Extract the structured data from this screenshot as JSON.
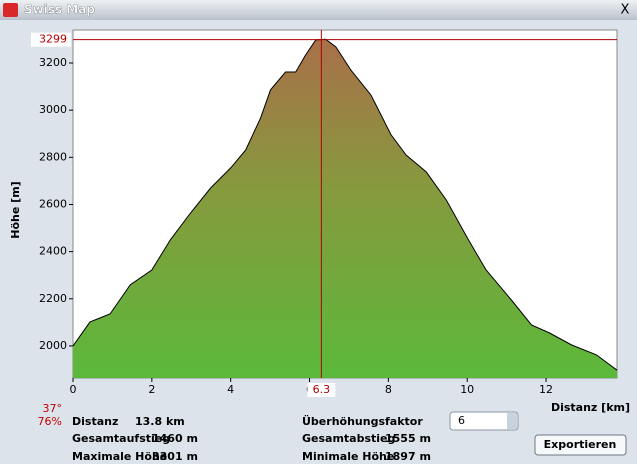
{
  "window": {
    "title": "Swiss Map",
    "close": "X"
  },
  "chart_data": {
    "type": "line",
    "ylabel": "Höhe [m]",
    "xlabel": "Distanz [km]",
    "x": [
      0,
      0.43,
      0.69,
      0.94,
      1.45,
      2.0,
      2.47,
      2.98,
      3.49,
      4.0,
      4.38,
      4.76,
      5.01,
      5.39,
      5.65,
      5.9,
      6.16,
      6.41,
      6.67,
      7.05,
      7.56,
      8.07,
      8.45,
      8.96,
      9.47,
      10.03,
      10.48,
      11.12,
      11.63,
      12.09,
      12.65,
      13.28,
      13.8
    ],
    "values": [
      2000,
      2102,
      2119,
      2136,
      2259,
      2322,
      2450,
      2564,
      2670,
      2755,
      2831,
      2967,
      3086,
      3162,
      3162,
      3234,
      3298,
      3301,
      3268,
      3170,
      3064,
      2895,
      2810,
      2738,
      2619,
      2450,
      2322,
      2195,
      2089,
      2055,
      2004,
      1962,
      1897
    ],
    "color": "#000000",
    "xlim": [
      0,
      13.8
    ],
    "ylim": [
      1864,
      3340
    ],
    "xticks": [
      0,
      2,
      4,
      6,
      8,
      10,
      12
    ],
    "yticks": [
      2000,
      2200,
      2400,
      2600,
      2800,
      3000,
      3200
    ],
    "cursor": {
      "x": 6.3,
      "y": 3299,
      "color": "#b00000"
    }
  },
  "status": {
    "slope": "37°",
    "percent": "76%"
  },
  "stats": {
    "distance": {
      "label": "Distanz",
      "value": "13.8 km"
    },
    "ascent": {
      "label": "Gesamtaufstieg",
      "value": "1460 m"
    },
    "max": {
      "label": "Maximale Höhe",
      "value": "3301 m"
    },
    "factor": {
      "label": "Überhöhungsfaktor",
      "value": "6"
    },
    "descent": {
      "label": "Gesamtabstieg",
      "value": "1555 m"
    },
    "min": {
      "label": "Minimale Höhe",
      "value": "1897 m"
    },
    "export": "Exportieren"
  }
}
